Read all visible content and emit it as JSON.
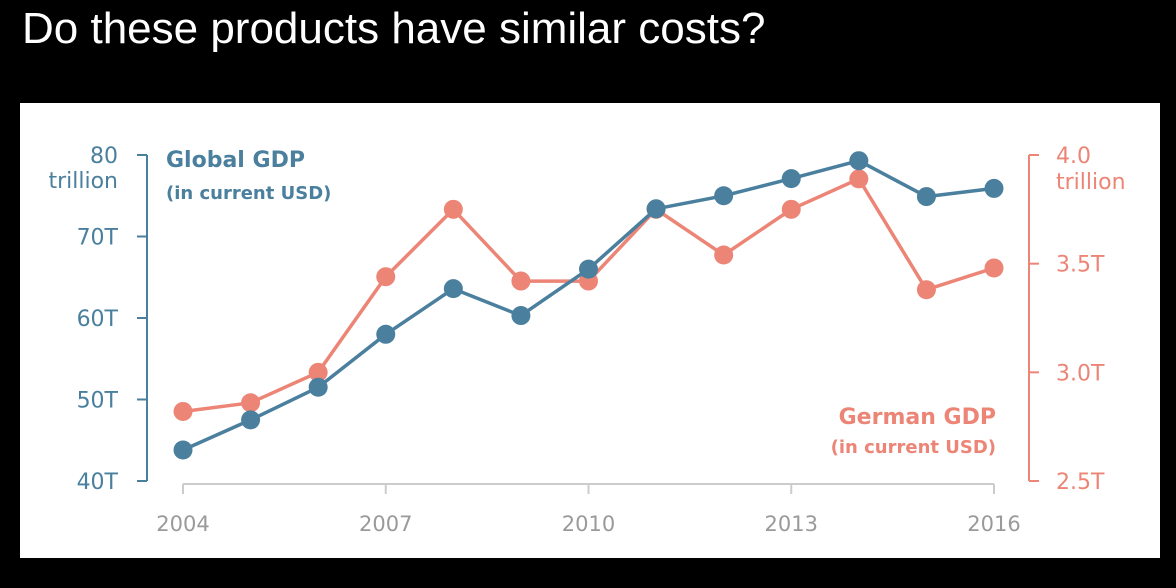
{
  "heading": "Do these products have similar costs?",
  "colors": {
    "global": "#4a7f9e",
    "german": "#ec8576",
    "axis_text": "#9a9a9a",
    "axis_line": "#cccccc"
  },
  "chart_data": {
    "type": "line",
    "x": [
      2004,
      2005,
      2006,
      2007,
      2008,
      2009,
      2010,
      2011,
      2012,
      2013,
      2014,
      2015,
      2016
    ],
    "x_tick_labels": [
      "2004",
      "2007",
      "2010",
      "2013",
      "2016"
    ],
    "x_ticks": [
      2004,
      2007,
      2010,
      2013,
      2016
    ],
    "series": [
      {
        "name": "Global GDP",
        "subtitle": "(in current USD)",
        "axis": "left",
        "values": [
          43.8,
          47.5,
          51.5,
          58.0,
          63.6,
          60.3,
          66.0,
          73.4,
          75.0,
          77.1,
          79.3,
          74.9,
          75.9
        ]
      },
      {
        "name": "German GDP",
        "subtitle": "(in current USD)",
        "axis": "right",
        "values": [
          2.82,
          2.86,
          3.0,
          3.44,
          3.75,
          3.42,
          3.42,
          3.75,
          3.54,
          3.75,
          3.89,
          3.38,
          3.48
        ]
      }
    ],
    "y_left": {
      "range": [
        40,
        80
      ],
      "ticks": [
        40,
        50,
        60,
        70,
        80
      ],
      "tick_labels": [
        "40T",
        "50T",
        "60T",
        "70T",
        "80"
      ],
      "unit_label": "trillion"
    },
    "y_right": {
      "range": [
        2.5,
        4.0
      ],
      "ticks": [
        2.5,
        3.0,
        3.5,
        4.0
      ],
      "tick_labels": [
        "2.5T",
        "3.0T",
        "3.5T",
        "4.0"
      ],
      "unit_label": "trillion"
    }
  }
}
